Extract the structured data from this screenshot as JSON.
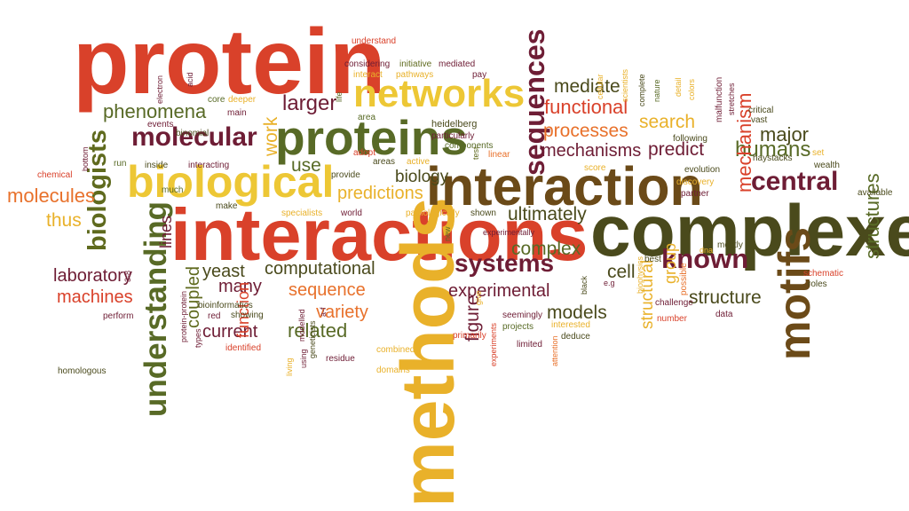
{
  "palette": {
    "red": "#d9412a",
    "orange": "#e8712b",
    "gold": "#e9b12a",
    "yellow": "#edc735",
    "olive": "#5f6a1e",
    "darkolive": "#4a4a1c",
    "green": "#586a26",
    "maroon": "#6e1d35",
    "brown": "#6b4a18"
  },
  "words": [
    {
      "id": "protein",
      "text": "protein",
      "color": "red"
    },
    {
      "id": "complexes",
      "text": "complexes",
      "color": "darkolive"
    },
    {
      "id": "interactions",
      "text": "interactions",
      "color": "red"
    },
    {
      "id": "methods",
      "text": "methods",
      "color": "gold"
    },
    {
      "id": "interaction",
      "text": "interaction",
      "color": "brown"
    },
    {
      "id": "biological",
      "text": "biological",
      "color": "yellow"
    },
    {
      "id": "proteins",
      "text": "proteins",
      "color": "green"
    },
    {
      "id": "networks",
      "text": "networks",
      "color": "yellow"
    },
    {
      "id": "motifs",
      "text": "motifs",
      "color": "brown"
    },
    {
      "id": "understanding",
      "text": "understanding",
      "color": "green"
    },
    {
      "id": "molecular",
      "text": "molecular",
      "color": "maroon"
    },
    {
      "id": "sequences",
      "text": "sequences",
      "color": "maroon"
    },
    {
      "id": "biologists",
      "text": "biologists",
      "color": "olive"
    },
    {
      "id": "central",
      "text": "central",
      "color": "maroon"
    },
    {
      "id": "known",
      "text": "known",
      "color": "maroon"
    },
    {
      "id": "systems",
      "text": "systems",
      "color": "maroon"
    },
    {
      "id": "phenomena",
      "text": "phenomena",
      "color": "green"
    },
    {
      "id": "larger",
      "text": "larger",
      "color": "maroon"
    },
    {
      "id": "functional",
      "text": "functional",
      "color": "red"
    },
    {
      "id": "processes",
      "text": "processes",
      "color": "orange"
    },
    {
      "id": "search",
      "text": "search",
      "color": "gold"
    },
    {
      "id": "mechanisms",
      "text": "mechanisms",
      "color": "maroon"
    },
    {
      "id": "predict",
      "text": "predict",
      "color": "maroon"
    },
    {
      "id": "humans",
      "text": "humans",
      "color": "green"
    },
    {
      "id": "major",
      "text": "major",
      "color": "darkolive"
    },
    {
      "id": "mediate",
      "text": "mediate",
      "color": "darkolive"
    },
    {
      "id": "structures",
      "text": "structures",
      "color": "green"
    },
    {
      "id": "mechanism",
      "text": "mechanism",
      "color": "red"
    },
    {
      "id": "ultimately",
      "text": "ultimately",
      "color": "darkolive"
    },
    {
      "id": "complex",
      "text": "complex",
      "color": "green"
    },
    {
      "id": "computational",
      "text": "computational",
      "color": "darkolive"
    },
    {
      "id": "experimental",
      "text": "experimental",
      "color": "maroon"
    },
    {
      "id": "structure",
      "text": "structure",
      "color": "darkolive"
    },
    {
      "id": "predictions",
      "text": "predictions",
      "color": "gold"
    },
    {
      "id": "use",
      "text": "use",
      "color": "green"
    },
    {
      "id": "work",
      "text": "work",
      "color": "gold"
    },
    {
      "id": "biology",
      "text": "biology",
      "color": "darkolive"
    },
    {
      "id": "yeast",
      "text": "yeast",
      "color": "darkolive"
    },
    {
      "id": "laboratory",
      "text": "laboratory",
      "color": "maroon"
    },
    {
      "id": "machines",
      "text": "machines",
      "color": "red"
    },
    {
      "id": "molecules",
      "text": "molecules",
      "color": "orange"
    },
    {
      "id": "thus",
      "text": "thus",
      "color": "gold"
    },
    {
      "id": "many",
      "text": "many",
      "color": "maroon"
    },
    {
      "id": "sequence",
      "text": "sequence",
      "color": "orange"
    },
    {
      "id": "variety",
      "text": "variety",
      "color": "orange"
    },
    {
      "id": "current",
      "text": "current",
      "color": "maroon"
    },
    {
      "id": "related",
      "text": "related",
      "color": "green"
    },
    {
      "id": "models",
      "text": "models",
      "color": "darkolive"
    },
    {
      "id": "figure",
      "text": "figure",
      "color": "maroon"
    },
    {
      "id": "structural",
      "text": "structural",
      "color": "gold"
    },
    {
      "id": "group",
      "text": "group",
      "color": "gold"
    },
    {
      "id": "cell",
      "text": "cell",
      "color": "darkolive"
    },
    {
      "id": "coupled",
      "text": "coupled",
      "color": "olive"
    },
    {
      "id": "function",
      "text": "function",
      "color": "red"
    },
    {
      "id": "lines",
      "text": "lines",
      "color": "maroon"
    },
    {
      "id": "understand",
      "text": "understand",
      "color": "red"
    },
    {
      "id": "considering",
      "text": "considering",
      "color": "maroon"
    },
    {
      "id": "initiative",
      "text": "initiative",
      "color": "olive"
    },
    {
      "id": "mediated",
      "text": "mediated",
      "color": "maroon"
    },
    {
      "id": "pay",
      "text": "pay",
      "color": "maroon"
    },
    {
      "id": "interact",
      "text": "interact",
      "color": "gold"
    },
    {
      "id": "pathways",
      "text": "pathways",
      "color": "gold"
    },
    {
      "id": "electron",
      "text": "electron",
      "color": "maroon"
    },
    {
      "id": "acid",
      "text": "acid",
      "color": "maroon"
    },
    {
      "id": "core",
      "text": "core",
      "color": "green"
    },
    {
      "id": "deeper",
      "text": "deeper",
      "color": "gold"
    },
    {
      "id": "main",
      "text": "main",
      "color": "maroon"
    },
    {
      "id": "life",
      "text": "life",
      "color": "green"
    },
    {
      "id": "area",
      "text": "area",
      "color": "green"
    },
    {
      "id": "heidelberg",
      "text": "heidelberg",
      "color": "darkolive"
    },
    {
      "id": "particularly",
      "text": "particularly",
      "color": "maroon"
    },
    {
      "id": "components",
      "text": "components",
      "color": "green"
    },
    {
      "id": "linear",
      "text": "linear",
      "color": "orange"
    },
    {
      "id": "test",
      "text": "test",
      "color": "olive"
    },
    {
      "id": "events",
      "text": "events",
      "color": "maroon"
    },
    {
      "id": "binomial",
      "text": "binomial",
      "color": "darkolive"
    },
    {
      "id": "bottom",
      "text": "bottom",
      "color": "maroon"
    },
    {
      "id": "run",
      "text": "run",
      "color": "green"
    },
    {
      "id": "inside",
      "text": "inside",
      "color": "darkolive"
    },
    {
      "id": "interacting",
      "text": "interacting",
      "color": "maroon"
    },
    {
      "id": "chemical",
      "text": "chemical",
      "color": "red"
    },
    {
      "id": "adopt",
      "text": "adopt",
      "color": "red"
    },
    {
      "id": "areas",
      "text": "areas",
      "color": "darkolive"
    },
    {
      "id": "active",
      "text": "active",
      "color": "gold"
    },
    {
      "id": "provide",
      "text": "provide",
      "color": "darkolive"
    },
    {
      "id": "make",
      "text": "make",
      "color": "darkolive"
    },
    {
      "id": "much",
      "text": "much",
      "color": "green"
    },
    {
      "id": "specialists",
      "text": "specialists",
      "color": "gold"
    },
    {
      "id": "world",
      "text": "world",
      "color": "maroon"
    },
    {
      "id": "pathologically",
      "text": "pathologically",
      "color": "gold"
    },
    {
      "id": "shown",
      "text": "shown",
      "color": "darkolive"
    },
    {
      "id": "experimentally",
      "text": "experimentally",
      "color": "maroon"
    },
    {
      "id": "new",
      "text": "new",
      "color": "green"
    },
    {
      "id": "cellular",
      "text": "cellular",
      "color": "gold"
    },
    {
      "id": "scientists",
      "text": "scientists",
      "color": "gold"
    },
    {
      "id": "complete",
      "text": "complete",
      "color": "darkolive"
    },
    {
      "id": "nature",
      "text": "nature",
      "color": "green"
    },
    {
      "id": "detail",
      "text": "detail",
      "color": "gold"
    },
    {
      "id": "colors",
      "text": "colors",
      "color": "gold"
    },
    {
      "id": "malfunction",
      "text": "malfunction",
      "color": "maroon"
    },
    {
      "id": "stretches",
      "text": "stretches",
      "color": "maroon"
    },
    {
      "id": "vast",
      "text": "vast",
      "color": "darkolive"
    },
    {
      "id": "critical",
      "text": "critical",
      "color": "darkolive"
    },
    {
      "id": "following",
      "text": "following",
      "color": "darkolive"
    },
    {
      "id": "score",
      "text": "score",
      "color": "gold"
    },
    {
      "id": "evolution",
      "text": "evolution",
      "color": "darkolive"
    },
    {
      "id": "discovery",
      "text": "discovery",
      "color": "gold"
    },
    {
      "id": "partner",
      "text": "partner",
      "color": "maroon"
    },
    {
      "id": "haystacks",
      "text": "haystacks",
      "color": "darkolive"
    },
    {
      "id": "wealth",
      "text": "wealth",
      "color": "darkolive"
    },
    {
      "id": "set",
      "text": "set",
      "color": "gold"
    },
    {
      "id": "available",
      "text": "available",
      "color": "darkolive"
    },
    {
      "id": "mostly",
      "text": "mostly",
      "color": "darkolive"
    },
    {
      "id": "schematic",
      "text": "schematic",
      "color": "red"
    },
    {
      "id": "roles",
      "text": "roles",
      "color": "darkolive"
    },
    {
      "id": "dna",
      "text": "dna",
      "color": "gold"
    },
    {
      "id": "best",
      "text": "best",
      "color": "darkolive"
    },
    {
      "id": "eg",
      "text": "e.g",
      "color": "maroon"
    },
    {
      "id": "black",
      "text": "black",
      "color": "darkolive"
    },
    {
      "id": "biophysics",
      "text": "biophysics",
      "color": "gold"
    },
    {
      "id": "possible",
      "text": "possible",
      "color": "orange"
    },
    {
      "id": "challenge",
      "text": "challenge",
      "color": "maroon"
    },
    {
      "id": "number",
      "text": "number",
      "color": "red"
    },
    {
      "id": "data",
      "text": "data",
      "color": "maroon"
    },
    {
      "id": "seemingly",
      "text": "seemingly",
      "color": "maroon"
    },
    {
      "id": "projects",
      "text": "projects",
      "color": "green"
    },
    {
      "id": "limited",
      "text": "limited",
      "color": "maroon"
    },
    {
      "id": "interested",
      "text": "interested",
      "color": "gold"
    },
    {
      "id": "deduce",
      "text": "deduce",
      "color": "darkolive"
    },
    {
      "id": "attention",
      "text": "attention",
      "color": "orange"
    },
    {
      "id": "give",
      "text": "give",
      "color": "gold"
    },
    {
      "id": "primarily",
      "text": "primarily",
      "color": "red"
    },
    {
      "id": "experiments",
      "text": "experiments",
      "color": "red"
    },
    {
      "id": "combined",
      "text": "combined",
      "color": "gold"
    },
    {
      "id": "domains",
      "text": "domains",
      "color": "gold"
    },
    {
      "id": "residue",
      "text": "residue",
      "color": "maroon"
    },
    {
      "id": "using",
      "text": "using",
      "color": "maroon"
    },
    {
      "id": "living",
      "text": "living",
      "color": "gold"
    },
    {
      "id": "modelled",
      "text": "modelled",
      "color": "maroon"
    },
    {
      "id": "geneticists",
      "text": "geneticists",
      "color": "darkolive"
    },
    {
      "id": "af",
      "text": "a-f",
      "color": "maroon"
    },
    {
      "id": "showing",
      "text": "showing",
      "color": "darkolive"
    },
    {
      "id": "bioinformatics",
      "text": "bioinformatics",
      "color": "darkolive"
    },
    {
      "id": "red",
      "text": "red",
      "color": "maroon"
    },
    {
      "id": "identified",
      "text": "identified",
      "color": "red"
    },
    {
      "id": "types",
      "text": "types",
      "color": "maroon"
    },
    {
      "id": "proteinprotein",
      "text": "protein-protein",
      "color": "maroon"
    },
    {
      "id": "perform",
      "text": "perform",
      "color": "maroon"
    },
    {
      "id": "homologous",
      "text": "homologous",
      "color": "darkolive"
    },
    {
      "id": "r38",
      "text": "3-8",
      "color": "maroon"
    }
  ]
}
